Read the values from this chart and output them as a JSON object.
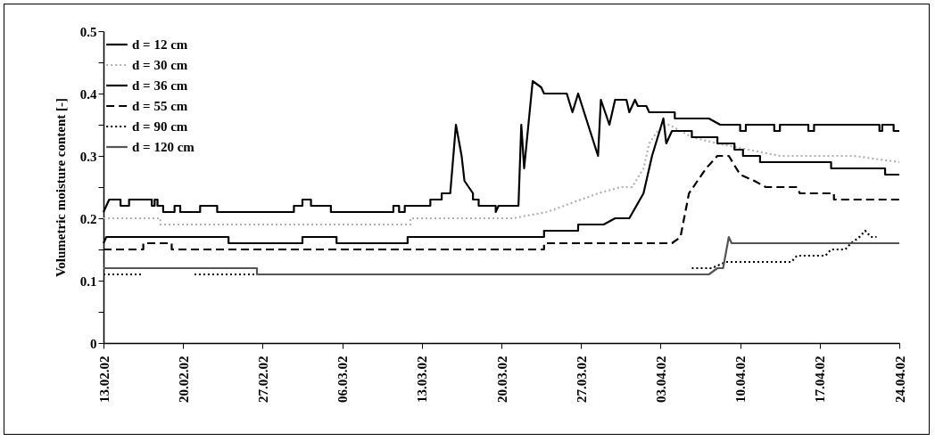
{
  "chart_data": {
    "type": "line",
    "ylabel": "Volumetric moisture content [-]",
    "xlim": [
      "--02-13",
      "--04-24"
    ],
    "xticks": [
      {
        "value": "--02-13",
        "label": "13.02.02"
      },
      {
        "value": "--02-20",
        "label": "20.02.02"
      },
      {
        "value": "--02-27",
        "label": "27.02.02"
      },
      {
        "value": "--03-06",
        "label": "06.03.02"
      },
      {
        "value": "--03-13",
        "label": "13.03.02"
      },
      {
        "value": "--03-20",
        "label": "20.03.02"
      },
      {
        "value": "--03-27",
        "label": "27.03.02"
      },
      {
        "value": "--04-03",
        "label": "03.04.02"
      },
      {
        "value": "--04-10",
        "label": "10.04.02"
      },
      {
        "value": "--04-17",
        "label": "17.04.02"
      },
      {
        "value": "--04-24",
        "label": "24.04.02"
      }
    ],
    "ylim": [
      0,
      0.5
    ],
    "yticks": [
      0,
      {
        "value": 0.05,
        "label": null
      },
      0.1,
      {
        "value": 0.15,
        "label": null
      },
      0.2,
      {
        "value": 0.25,
        "label": null
      },
      0.3,
      {
        "value": 0.35,
        "label": null
      },
      0.4,
      {
        "value": 0.45,
        "label": null
      },
      0.5
    ],
    "legend": "top left",
    "series": [
      {
        "name": "d = 12 cm",
        "color": "#000000",
        "line_style": "solid",
        "x": [
          "--02-13",
          "--02-13T06:00",
          "--02-13T12:00",
          "--02-14T12:00",
          "--02-14T12:00",
          "--02-15T06:00",
          "--02-15T06:00",
          "--02-17T06:00",
          "--02-17T06:00",
          "--02-17T12:00",
          "--02-17T12:00",
          "--02-17T18:00",
          "--02-17T18:00",
          "--02-18T06:00",
          "--02-18T06:00",
          "--02-19T06:00",
          "--02-19T06:00",
          "--02-19T18:00",
          "--02-19T18:00",
          "--02-21T12:00",
          "--02-21T12:00",
          "--02-23",
          "--02-23",
          "--03-01T18:00",
          "--03-01T18:00",
          "--03-02T12:00",
          "--03-02T12:00",
          "--03-03T06:00",
          "--03-03T06:00",
          "--03-05",
          "--03-05",
          "--03-10T12:00",
          "--03-10T12:00",
          "--03-11",
          "--03-11",
          "--03-11T12:00",
          "--03-11T12:00",
          "--03-13T18:00",
          "--03-13T18:00",
          "--03-14T18:00",
          "--03-14T18:00",
          "--03-15T12:00",
          "--03-16",
          "--03-16T12:00",
          "--03-16T18:00",
          "--03-17T12:00",
          "--03-17T12:00",
          "--03-18",
          "--03-18",
          "--03-19T12:00",
          "--03-19T12:00",
          "--03-19T18:00",
          "--03-21T12:00",
          "--03-21T18:00",
          "--03-22",
          "--03-22T18:00",
          "--03-23T12:00",
          "--03-23T18:00",
          "--03-25T18:00",
          "--03-26T06:00",
          "--03-26T18:00",
          "--03-28T12:00",
          "--03-28T18:00",
          "--03-29T12:00",
          "--03-30",
          "--03-31",
          "--03-31T06:00",
          "--03-31T18:00",
          "--04-01",
          "--04-01T18:00",
          "--04-02",
          "--04-04T06:00",
          "--04-04T06:00",
          "--04-07T06:00",
          "--04-08T06:00",
          "--04-10",
          "--04-10",
          "--04-10T12:00",
          "--04-10T12:00",
          "--04-13",
          "--04-13",
          "--04-13T12:00",
          "--04-13T12:00",
          "--04-16",
          "--04-16",
          "--04-16T12:00",
          "--04-16T12:00",
          "--04-22T06:00",
          "--04-22T06:00",
          "--04-22T12:00",
          "--04-22T12:00",
          "--04-23T12:00",
          "--04-23T12:00",
          "--04-24"
        ],
        "values": [
          0.21,
          0.22,
          0.23,
          0.23,
          0.22,
          0.22,
          0.23,
          0.23,
          0.22,
          0.22,
          0.23,
          0.23,
          0.22,
          0.22,
          0.21,
          0.21,
          0.22,
          0.22,
          0.21,
          0.21,
          0.22,
          0.22,
          0.21,
          0.21,
          0.22,
          0.22,
          0.23,
          0.23,
          0.22,
          0.22,
          0.21,
          0.21,
          0.22,
          0.22,
          0.21,
          0.21,
          0.22,
          0.22,
          0.23,
          0.23,
          0.24,
          0.24,
          0.35,
          0.3,
          0.26,
          0.24,
          0.23,
          0.23,
          0.22,
          0.22,
          0.21,
          0.22,
          0.22,
          0.35,
          0.28,
          0.42,
          0.41,
          0.4,
          0.4,
          0.37,
          0.4,
          0.3,
          0.39,
          0.35,
          0.39,
          0.39,
          0.37,
          0.39,
          0.38,
          0.38,
          0.37,
          0.37,
          0.36,
          0.36,
          0.35,
          0.35,
          0.34,
          0.34,
          0.35,
          0.35,
          0.34,
          0.34,
          0.35,
          0.35,
          0.34,
          0.34,
          0.35,
          0.35,
          0.34,
          0.34,
          0.35,
          0.35,
          0.34,
          0.34
        ]
      },
      {
        "name": "d = 30 cm",
        "color": "#b0b0b0",
        "line_style": "dotted",
        "x": [
          "--02-13",
          "--02-18",
          "--02-18",
          "--03-12",
          "--03-12",
          "--03-21",
          "--03-24",
          "--03-28T12:00",
          "--03-30T12:00",
          "--03-31T12:00",
          "--04-01T12:00",
          "--04-02",
          "--04-02T18:00",
          "--04-03T18:00",
          "--04-05T18:00",
          "--04-08",
          "--04-10T18:00",
          "--04-13T12:00",
          "--04-20",
          "--04-24"
        ],
        "values": [
          0.2,
          0.2,
          0.19,
          0.19,
          0.2,
          0.2,
          0.21,
          0.24,
          0.25,
          0.25,
          0.28,
          0.32,
          0.34,
          0.35,
          0.33,
          0.32,
          0.31,
          0.3,
          0.3,
          0.29
        ]
      },
      {
        "name": "d = 36 cm",
        "color": "#000000",
        "line_style": "solid",
        "x": [
          "--02-13",
          "--02-13T06:00",
          "--02-24",
          "--02-24",
          "--03-02T12:00",
          "--03-02T12:00",
          "--03-05T12:00",
          "--03-05T12:00",
          "--03-11T18:00",
          "--03-11T18:00",
          "--03-23T18:00",
          "--03-23T18:00",
          "--03-26T18:00",
          "--03-26T18:00",
          "--03-29",
          "--03-30",
          "--03-31T06:00",
          "--04-01T12:00",
          "--04-02T06:00",
          "--04-02T18:00",
          "--04-03T06:00",
          "--04-03T12:00",
          "--04-04",
          "--04-05T18:00",
          "--04-05T18:00",
          "--04-08",
          "--04-08",
          "--04-09T12:00",
          "--04-09T12:00",
          "--04-10T06:00",
          "--04-10T06:00",
          "--04-11T18:00",
          "--04-11T18:00",
          "--04-18",
          "--04-18",
          "--04-22T18:00",
          "--04-22T18:00",
          "--04-24"
        ],
        "values": [
          0.16,
          0.17,
          0.17,
          0.16,
          0.16,
          0.17,
          0.17,
          0.16,
          0.16,
          0.17,
          0.17,
          0.18,
          0.18,
          0.19,
          0.19,
          0.2,
          0.2,
          0.24,
          0.3,
          0.33,
          0.36,
          0.32,
          0.34,
          0.34,
          0.33,
          0.33,
          0.32,
          0.32,
          0.31,
          0.31,
          0.3,
          0.3,
          0.29,
          0.29,
          0.28,
          0.28,
          0.27,
          0.27
        ]
      },
      {
        "name": "d = 55 cm",
        "color": "#000000",
        "line_style": "dashed",
        "x": [
          "--02-13",
          "--02-16T12:00",
          "--02-16T12:00",
          "--02-19",
          "--02-19",
          "--03-23T18:00",
          "--03-23T18:00",
          "--04-04",
          "--04-04T18:00",
          "--04-05T12:00",
          "--04-06T06:00",
          "--04-07",
          "--04-08",
          "--04-09",
          "--04-10",
          "--04-11T06:00",
          "--04-12T06:00",
          "--04-15",
          "--04-15T06:00",
          "--04-18T06:00",
          "--04-18T06:00",
          "--04-24"
        ],
        "values": [
          0.15,
          0.15,
          0.16,
          0.16,
          0.15,
          0.15,
          0.16,
          0.16,
          0.17,
          0.24,
          0.26,
          0.28,
          0.3,
          0.3,
          0.27,
          0.26,
          0.25,
          0.25,
          0.24,
          0.24,
          0.23,
          0.23
        ]
      },
      {
        "name": "d = 90 cm",
        "color": "#000000",
        "line_style": "dotted",
        "x": [
          "--02-13",
          "--02-16T12:00",
          "--02-17",
          "--02-21",
          "--02-26T12:00",
          "--02-27",
          "--04-05T18:00",
          "--04-07T12:00",
          "--04-08T18:00",
          "--04-14T12:00",
          "--04-15",
          "--04-17T12:00",
          "--04-18",
          "--04-19T06:00",
          "--04-19T18:00",
          "--04-20T12:00",
          "--04-21",
          "--04-21T12:00",
          "--04-22"
        ],
        "values": [
          0.11,
          0.11,
          null,
          0.11,
          0.11,
          null,
          0.12,
          0.12,
          0.13,
          0.13,
          0.14,
          0.14,
          0.15,
          0.15,
          0.16,
          0.17,
          0.18,
          0.17,
          0.17
        ]
      },
      {
        "name": "d = 120 cm",
        "color": "#555555",
        "line_style": "solid",
        "x": [
          "--02-13",
          "--02-26T12:00",
          "--02-26T12:00",
          "--04-07T06:00",
          "--04-08",
          "--04-08T12:00",
          "--04-09",
          "--04-09T06:00",
          "--04-24"
        ],
        "values": [
          0.12,
          0.12,
          0.11,
          0.11,
          0.12,
          0.12,
          0.17,
          0.16,
          0.16
        ]
      }
    ]
  }
}
